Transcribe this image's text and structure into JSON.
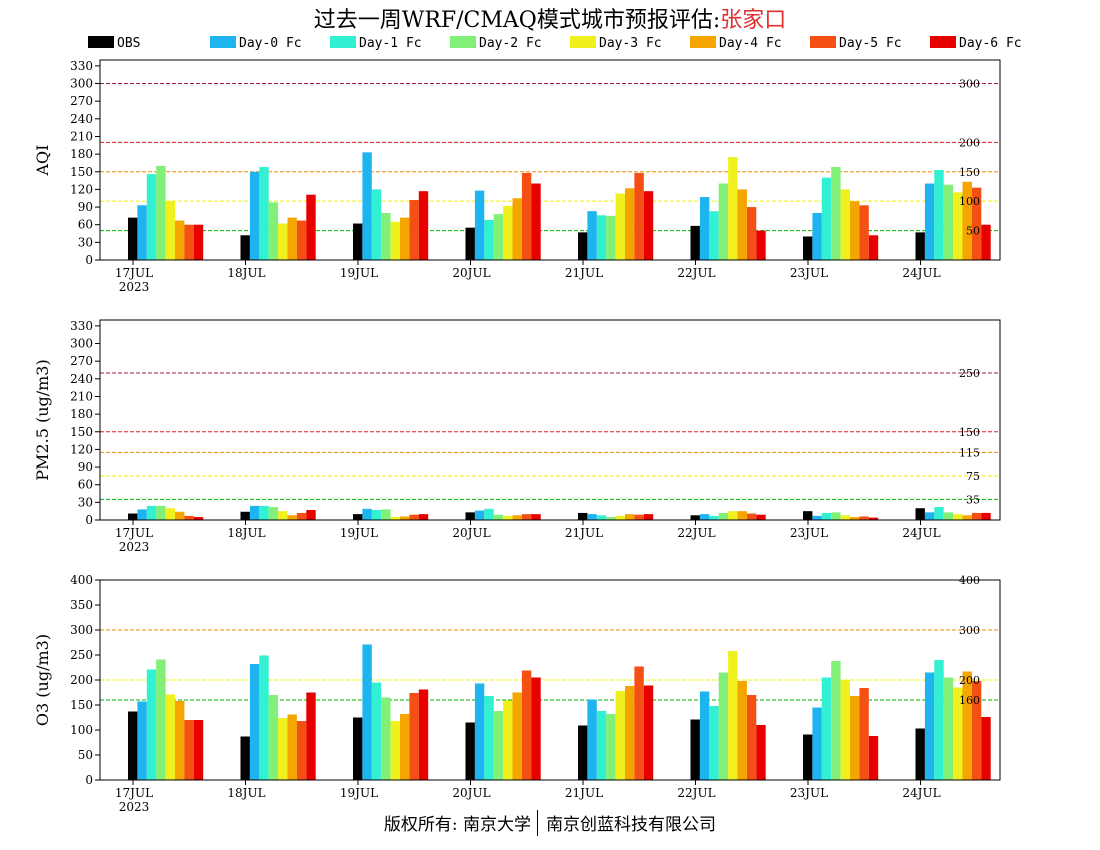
{
  "title_main": "过去一周WRF/CMAQ模式城市预报评估:",
  "title_city": "张家口",
  "footer_left": "版权所有: 南京大学",
  "footer_right": "南京创蓝科技有限公司",
  "legend": [
    {
      "name": "OBS",
      "color": "#000000"
    },
    {
      "name": "Day-0 Fc",
      "color": "#1eb4f0"
    },
    {
      "name": "Day-1 Fc",
      "color": "#32f0d2"
    },
    {
      "name": "Day-2 Fc",
      "color": "#82f078"
    },
    {
      "name": "Day-3 Fc",
      "color": "#f0f01e"
    },
    {
      "name": "Day-4 Fc",
      "color": "#f5a500"
    },
    {
      "name": "Day-5 Fc",
      "color": "#f55014"
    },
    {
      "name": "Day-6 Fc",
      "color": "#e60000"
    }
  ],
  "chart_data": [
    {
      "type": "bar",
      "ylabel": "AQI",
      "ylim": [
        0,
        340
      ],
      "yticks": [
        0,
        30,
        60,
        90,
        120,
        150,
        180,
        210,
        240,
        270,
        300,
        330
      ],
      "categories": [
        "17JUL",
        "18JUL",
        "19JUL",
        "20JUL",
        "21JUL",
        "22JUL",
        "23JUL",
        "24JUL"
      ],
      "year_label": "2023",
      "thresholds": [
        {
          "value": 50,
          "label": "50",
          "color": "#00b400"
        },
        {
          "value": 100,
          "label": "100",
          "color": "#f0f000"
        },
        {
          "value": 150,
          "label": "150",
          "color": "#f08c00"
        },
        {
          "value": 200,
          "label": "200",
          "color": "#e61e1e"
        },
        {
          "value": 300,
          "label": "300",
          "color": "#a01e50"
        }
      ],
      "series": [
        {
          "name": "OBS",
          "values": [
            72,
            42,
            62,
            55,
            47,
            58,
            40,
            47
          ]
        },
        {
          "name": "Day-0 Fc",
          "values": [
            93,
            150,
            183,
            118,
            83,
            107,
            80,
            130
          ]
        },
        {
          "name": "Day-1 Fc",
          "values": [
            146,
            158,
            120,
            68,
            76,
            83,
            140,
            153
          ]
        },
        {
          "name": "Day-2 Fc",
          "values": [
            160,
            98,
            80,
            78,
            75,
            130,
            158,
            128
          ]
        },
        {
          "name": "Day-3 Fc",
          "values": [
            100,
            62,
            65,
            92,
            113,
            175,
            120,
            115
          ]
        },
        {
          "name": "Day-4 Fc",
          "values": [
            67,
            72,
            72,
            105,
            122,
            120,
            100,
            133
          ]
        },
        {
          "name": "Day-5 Fc",
          "values": [
            60,
            67,
            102,
            148,
            148,
            90,
            93,
            123
          ]
        },
        {
          "name": "Day-6 Fc",
          "values": [
            60,
            111,
            117,
            130,
            117,
            50,
            42,
            60
          ]
        }
      ]
    },
    {
      "type": "bar",
      "ylabel": "PM2.5 (ug/m3)",
      "ylim": [
        0,
        340
      ],
      "yticks": [
        0,
        30,
        60,
        90,
        120,
        150,
        180,
        210,
        240,
        270,
        300,
        330
      ],
      "categories": [
        "17JUL",
        "18JUL",
        "19JUL",
        "20JUL",
        "21JUL",
        "22JUL",
        "23JUL",
        "24JUL"
      ],
      "year_label": "2023",
      "thresholds": [
        {
          "value": 35,
          "label": "35",
          "color": "#00b400"
        },
        {
          "value": 75,
          "label": "75",
          "color": "#f0f000"
        },
        {
          "value": 115,
          "label": "115",
          "color": "#f08c00"
        },
        {
          "value": 150,
          "label": "150",
          "color": "#e61e1e"
        },
        {
          "value": 250,
          "label": "250",
          "color": "#a01e50"
        }
      ],
      "series": [
        {
          "name": "OBS",
          "values": [
            11,
            14,
            10,
            13,
            12,
            8,
            15,
            20
          ]
        },
        {
          "name": "Day-0 Fc",
          "values": [
            18,
            24,
            19,
            16,
            10,
            10,
            7,
            13
          ]
        },
        {
          "name": "Day-1 Fc",
          "values": [
            24,
            24,
            17,
            19,
            8,
            7,
            12,
            22
          ]
        },
        {
          "name": "Day-2 Fc",
          "values": [
            24,
            22,
            18,
            9,
            5,
            12,
            13,
            13
          ]
        },
        {
          "name": "Day-3 Fc",
          "values": [
            20,
            15,
            5,
            7,
            7,
            15,
            8,
            10
          ]
        },
        {
          "name": "Day-4 Fc",
          "values": [
            14,
            8,
            6,
            8,
            10,
            15,
            5,
            8
          ]
        },
        {
          "name": "Day-5 Fc",
          "values": [
            7,
            12,
            9,
            10,
            9,
            11,
            6,
            12
          ]
        },
        {
          "name": "Day-6 Fc",
          "values": [
            5,
            17,
            10,
            10,
            10,
            9,
            4,
            12
          ]
        }
      ]
    },
    {
      "type": "bar",
      "ylabel": "O3 (ug/m3)",
      "ylim": [
        0,
        400
      ],
      "yticks": [
        0,
        50,
        100,
        150,
        200,
        250,
        300,
        350,
        400
      ],
      "categories": [
        "17JUL",
        "18JUL",
        "19JUL",
        "20JUL",
        "21JUL",
        "22JUL",
        "23JUL",
        "24JUL"
      ],
      "year_label": "2023",
      "thresholds": [
        {
          "value": 160,
          "label": "160",
          "color": "#00b400"
        },
        {
          "value": 200,
          "label": "200",
          "color": "#f0f000"
        },
        {
          "value": 300,
          "label": "300",
          "color": "#f08c00"
        },
        {
          "value": 400,
          "label": "400",
          "color": "#e61e1e"
        }
      ],
      "series": [
        {
          "name": "OBS",
          "values": [
            137,
            87,
            125,
            115,
            109,
            121,
            91,
            103
          ]
        },
        {
          "name": "Day-0 Fc",
          "values": [
            157,
            232,
            271,
            193,
            161,
            177,
            145,
            215
          ]
        },
        {
          "name": "Day-1 Fc",
          "values": [
            221,
            249,
            195,
            168,
            138,
            148,
            205,
            240
          ]
        },
        {
          "name": "Day-2 Fc",
          "values": [
            241,
            170,
            165,
            138,
            132,
            215,
            238,
            205
          ]
        },
        {
          "name": "Day-3 Fc",
          "values": [
            171,
            124,
            118,
            159,
            178,
            258,
            200,
            185
          ]
        },
        {
          "name": "Day-4 Fc",
          "values": [
            158,
            131,
            132,
            175,
            188,
            198,
            168,
            217
          ]
        },
        {
          "name": "Day-5 Fc",
          "values": [
            120,
            118,
            174,
            219,
            227,
            170,
            184,
            198
          ]
        },
        {
          "name": "Day-6 Fc",
          "values": [
            120,
            175,
            181,
            205,
            189,
            110,
            88,
            126
          ]
        }
      ]
    }
  ]
}
